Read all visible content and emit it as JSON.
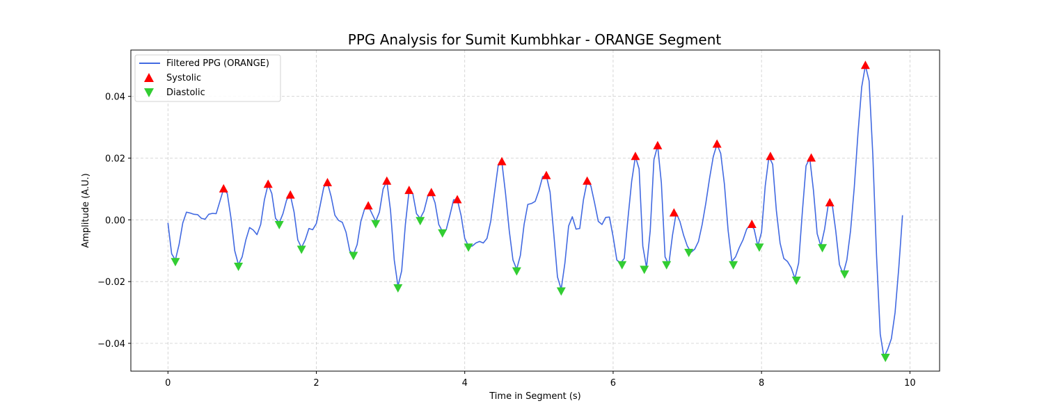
{
  "chart_data": {
    "type": "line",
    "title": "PPG Analysis for Sumit Kumbhkar - ORANGE Segment",
    "xlabel": "Time in Segment (s)",
    "ylabel": "Amplitude (A.U.)",
    "xlim": [
      -0.5,
      10.4
    ],
    "ylim": [
      -0.049,
      0.055
    ],
    "xticks": [
      0,
      2,
      4,
      6,
      8,
      10
    ],
    "xtick_labels": [
      "0",
      "2",
      "4",
      "6",
      "8",
      "10"
    ],
    "yticks": [
      -0.04,
      -0.02,
      0.0,
      0.02,
      0.04
    ],
    "ytick_labels": [
      "−0.04",
      "−0.02",
      "0.00",
      "0.02",
      "0.04"
    ],
    "grid": true,
    "legend_position": "top-left",
    "colors": {
      "line": "#4169e1",
      "systolic": "#ff0000",
      "diastolic": "#32cd32",
      "grid": "#cccccc"
    },
    "series": [
      {
        "name": "Filtered PPG (ORANGE)",
        "kind": "line",
        "points": [
          [
            0.0,
            -0.001
          ],
          [
            0.05,
            -0.011
          ],
          [
            0.1,
            -0.013
          ],
          [
            0.15,
            -0.008
          ],
          [
            0.2,
            -0.001
          ],
          [
            0.25,
            0.0025
          ],
          [
            0.3,
            0.0022
          ],
          [
            0.35,
            0.0018
          ],
          [
            0.4,
            0.0017
          ],
          [
            0.45,
            0.0005
          ],
          [
            0.5,
            0.0002
          ],
          [
            0.55,
            0.0018
          ],
          [
            0.6,
            0.0021
          ],
          [
            0.65,
            0.002
          ],
          [
            0.7,
            0.006
          ],
          [
            0.75,
            0.01
          ],
          [
            0.8,
            0.0085
          ],
          [
            0.85,
            0.0005
          ],
          [
            0.9,
            -0.01
          ],
          [
            0.95,
            -0.0145
          ],
          [
            1.0,
            -0.012
          ],
          [
            1.05,
            -0.0065
          ],
          [
            1.1,
            -0.0025
          ],
          [
            1.15,
            -0.0033
          ],
          [
            1.2,
            -0.0048
          ],
          [
            1.25,
            -0.0015
          ],
          [
            1.3,
            0.0065
          ],
          [
            1.35,
            0.0115
          ],
          [
            1.4,
            0.0085
          ],
          [
            1.45,
            0.0005
          ],
          [
            1.5,
            -0.001
          ],
          [
            1.55,
            0.002
          ],
          [
            1.6,
            0.0065
          ],
          [
            1.65,
            0.008
          ],
          [
            1.7,
            0.0025
          ],
          [
            1.75,
            -0.0065
          ],
          [
            1.8,
            -0.009
          ],
          [
            1.85,
            -0.0065
          ],
          [
            1.9,
            -0.0028
          ],
          [
            1.95,
            -0.0032
          ],
          [
            2.0,
            -0.0012
          ],
          [
            2.05,
            0.0045
          ],
          [
            2.1,
            0.0105
          ],
          [
            2.15,
            0.012
          ],
          [
            2.2,
            0.0075
          ],
          [
            2.25,
            0.0015
          ],
          [
            2.3,
            -0.0002
          ],
          [
            2.35,
            -0.0008
          ],
          [
            2.4,
            -0.004
          ],
          [
            2.45,
            -0.01
          ],
          [
            2.5,
            -0.0112
          ],
          [
            2.55,
            -0.008
          ],
          [
            2.6,
            -0.0005
          ],
          [
            2.65,
            0.0035
          ],
          [
            2.7,
            0.0045
          ],
          [
            2.75,
            0.002
          ],
          [
            2.8,
            -0.0005
          ],
          [
            2.85,
            0.0025
          ],
          [
            2.9,
            0.01
          ],
          [
            2.95,
            0.0125
          ],
          [
            3.0,
            0.003
          ],
          [
            3.05,
            -0.013
          ],
          [
            3.1,
            -0.0215
          ],
          [
            3.15,
            -0.0165
          ],
          [
            3.2,
            -0.0015
          ],
          [
            3.25,
            0.0095
          ],
          [
            3.3,
            0.0085
          ],
          [
            3.35,
            0.002
          ],
          [
            3.4,
            0.0005
          ],
          [
            3.45,
            0.0028
          ],
          [
            3.5,
            0.0075
          ],
          [
            3.55,
            0.0088
          ],
          [
            3.6,
            0.0055
          ],
          [
            3.65,
            -0.0015
          ],
          [
            3.7,
            -0.0038
          ],
          [
            3.75,
            -0.0032
          ],
          [
            3.8,
            0.0015
          ],
          [
            3.85,
            0.0065
          ],
          [
            3.9,
            0.0065
          ],
          [
            3.95,
            0.0015
          ],
          [
            4.0,
            -0.006
          ],
          [
            4.05,
            -0.0085
          ],
          [
            4.1,
            -0.0085
          ],
          [
            4.15,
            -0.0075
          ],
          [
            4.2,
            -0.007
          ],
          [
            4.25,
            -0.0075
          ],
          [
            4.3,
            -0.006
          ],
          [
            4.35,
            -0.0005
          ],
          [
            4.4,
            0.0085
          ],
          [
            4.45,
            0.0175
          ],
          [
            4.5,
            0.0188
          ],
          [
            4.55,
            0.0085
          ],
          [
            4.6,
            -0.0035
          ],
          [
            4.65,
            -0.013
          ],
          [
            4.7,
            -0.016
          ],
          [
            4.75,
            -0.0115
          ],
          [
            4.8,
            -0.0015
          ],
          [
            4.85,
            0.005
          ],
          [
            4.9,
            0.0053
          ],
          [
            4.95,
            0.006
          ],
          [
            5.0,
            0.0095
          ],
          [
            5.05,
            0.014
          ],
          [
            5.1,
            0.0143
          ],
          [
            5.15,
            0.009
          ],
          [
            5.2,
            -0.0045
          ],
          [
            5.25,
            -0.0185
          ],
          [
            5.3,
            -0.0225
          ],
          [
            5.35,
            -0.014
          ],
          [
            5.4,
            -0.002
          ],
          [
            5.45,
            0.001
          ],
          [
            5.5,
            -0.003
          ],
          [
            5.55,
            -0.0028
          ],
          [
            5.6,
            0.0065
          ],
          [
            5.65,
            0.0125
          ],
          [
            5.7,
            0.011
          ],
          [
            5.75,
            0.0055
          ],
          [
            5.8,
            -0.0005
          ],
          [
            5.85,
            -0.0015
          ],
          [
            5.9,
            0.0008
          ],
          [
            5.95,
            0.0009
          ],
          [
            6.0,
            -0.0055
          ],
          [
            6.05,
            -0.013
          ],
          [
            6.1,
            -0.014
          ],
          [
            6.15,
            -0.0125
          ],
          [
            6.2,
            0.0005
          ],
          [
            6.25,
            0.0125
          ],
          [
            6.3,
            0.0205
          ],
          [
            6.35,
            0.0165
          ],
          [
            6.4,
            -0.0085
          ],
          [
            6.45,
            -0.0155
          ],
          [
            6.5,
            -0.0035
          ],
          [
            6.55,
            0.0195
          ],
          [
            6.6,
            0.024
          ],
          [
            6.65,
            0.012
          ],
          [
            6.7,
            -0.012
          ],
          [
            6.75,
            -0.0145
          ],
          [
            6.8,
            -0.005
          ],
          [
            6.85,
            0.0022
          ],
          [
            6.9,
            -0.0005
          ],
          [
            6.95,
            -0.005
          ],
          [
            7.0,
            -0.0085
          ],
          [
            7.05,
            -0.0105
          ],
          [
            7.1,
            -0.0095
          ],
          [
            7.15,
            -0.007
          ],
          [
            7.2,
            -0.0015
          ],
          [
            7.25,
            0.0055
          ],
          [
            7.3,
            0.0135
          ],
          [
            7.35,
            0.0205
          ],
          [
            7.4,
            0.0245
          ],
          [
            7.45,
            0.0215
          ],
          [
            7.5,
            0.0115
          ],
          [
            7.55,
            -0.0035
          ],
          [
            7.6,
            -0.0135
          ],
          [
            7.65,
            -0.012
          ],
          [
            7.7,
            -0.009
          ],
          [
            7.75,
            -0.0065
          ],
          [
            7.8,
            -0.003
          ],
          [
            7.85,
            -0.0015
          ],
          [
            7.9,
            -0.003
          ],
          [
            7.95,
            -0.0085
          ],
          [
            8.0,
            -0.004
          ],
          [
            8.05,
            0.011
          ],
          [
            8.1,
            0.0205
          ],
          [
            8.15,
            0.018
          ],
          [
            8.2,
            0.003
          ],
          [
            8.25,
            -0.0075
          ],
          [
            8.3,
            -0.0125
          ],
          [
            8.35,
            -0.0135
          ],
          [
            8.4,
            -0.0155
          ],
          [
            8.45,
            -0.019
          ],
          [
            8.5,
            -0.014
          ],
          [
            8.55,
            0.0025
          ],
          [
            8.6,
            0.0175
          ],
          [
            8.65,
            0.02
          ],
          [
            8.7,
            0.0095
          ],
          [
            8.75,
            -0.0045
          ],
          [
            8.8,
            -0.0085
          ],
          [
            8.85,
            -0.003
          ],
          [
            8.9,
            0.005
          ],
          [
            8.95,
            0.0055
          ],
          [
            9.0,
            -0.0035
          ],
          [
            9.05,
            -0.0145
          ],
          [
            9.1,
            -0.0175
          ],
          [
            9.15,
            -0.013
          ],
          [
            9.2,
            -0.0035
          ],
          [
            9.25,
            0.0105
          ],
          [
            9.3,
            0.028
          ],
          [
            9.35,
            0.043
          ],
          [
            9.4,
            0.05
          ],
          [
            9.45,
            0.045
          ],
          [
            9.5,
            0.021
          ],
          [
            9.55,
            -0.0115
          ],
          [
            9.6,
            -0.037
          ],
          [
            9.65,
            -0.0445
          ],
          [
            9.7,
            -0.042
          ],
          [
            9.75,
            -0.0385
          ],
          [
            9.8,
            -0.03
          ],
          [
            9.85,
            -0.0155
          ],
          [
            9.9,
            0.0015
          ]
        ]
      },
      {
        "name": "Systolic",
        "kind": "marker",
        "marker": "triangle-up",
        "points": [
          [
            0.75,
            0.01
          ],
          [
            1.35,
            0.0115
          ],
          [
            1.65,
            0.008
          ],
          [
            2.15,
            0.012
          ],
          [
            2.7,
            0.0045
          ],
          [
            2.95,
            0.0125
          ],
          [
            3.25,
            0.0095
          ],
          [
            3.55,
            0.0088
          ],
          [
            3.9,
            0.0065
          ],
          [
            4.5,
            0.0188
          ],
          [
            5.1,
            0.0143
          ],
          [
            5.65,
            0.0125
          ],
          [
            6.3,
            0.0205
          ],
          [
            6.6,
            0.024
          ],
          [
            6.82,
            0.0022
          ],
          [
            7.4,
            0.0245
          ],
          [
            7.87,
            -0.0015
          ],
          [
            8.12,
            0.0205
          ],
          [
            8.67,
            0.02
          ],
          [
            8.92,
            0.0055
          ],
          [
            9.4,
            0.05
          ]
        ]
      },
      {
        "name": "Diastolic",
        "kind": "marker",
        "marker": "triangle-down",
        "points": [
          [
            0.1,
            -0.0135
          ],
          [
            0.95,
            -0.015
          ],
          [
            1.5,
            -0.0015
          ],
          [
            1.8,
            -0.0095
          ],
          [
            2.5,
            -0.0115
          ],
          [
            2.8,
            -0.0012
          ],
          [
            3.1,
            -0.022
          ],
          [
            3.4,
            -0.0002
          ],
          [
            3.7,
            -0.0042
          ],
          [
            4.05,
            -0.0088
          ],
          [
            4.7,
            -0.0165
          ],
          [
            5.3,
            -0.023
          ],
          [
            6.12,
            -0.0145
          ],
          [
            6.42,
            -0.016
          ],
          [
            6.72,
            -0.0145
          ],
          [
            7.02,
            -0.0105
          ],
          [
            7.62,
            -0.0145
          ],
          [
            7.97,
            -0.0088
          ],
          [
            8.47,
            -0.0195
          ],
          [
            8.82,
            -0.009
          ],
          [
            9.12,
            -0.0175
          ],
          [
            9.67,
            -0.0445
          ]
        ]
      }
    ]
  }
}
